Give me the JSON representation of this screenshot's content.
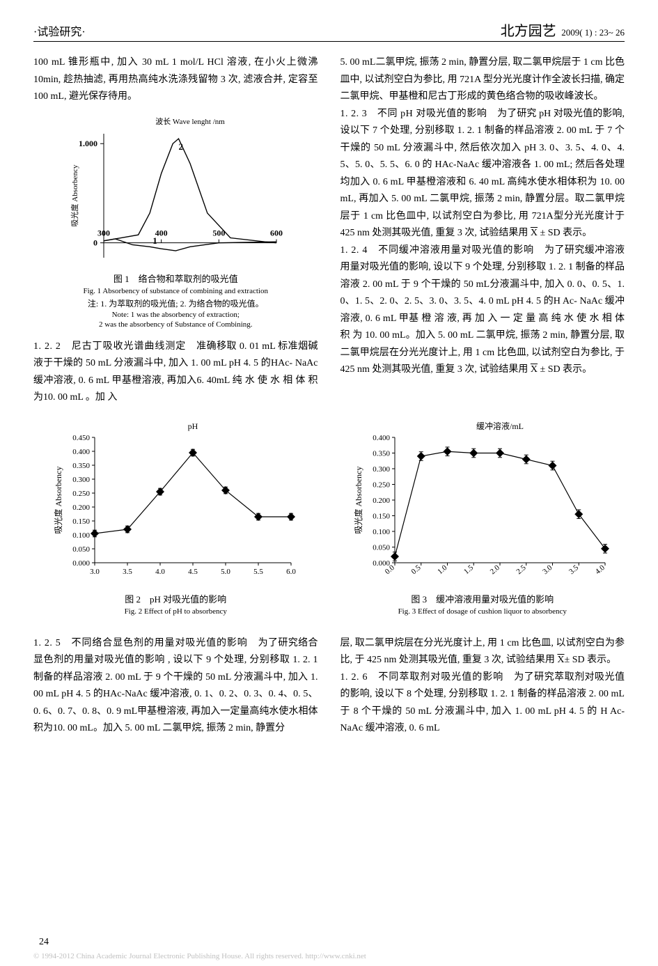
{
  "header": {
    "section": "·试验研究·",
    "journal": "北方园艺",
    "issue": "2009( 1) : 23~ 26"
  },
  "col_left": {
    "p1": "100 mL 锥形瓶中, 加入 30 mL 1 mol/L HCl 溶液, 在小火上微沸 10min, 趁热抽滤, 再用热高纯水洗涤残留物 3 次, 滤液合并, 定容至 100 mL, 避光保存待用。",
    "p2_head": "1. 2. 2　尼古丁吸收光谱曲线测定　",
    "p2_body": "准确移取 0. 01 mL 标准烟碱液于干燥的 50 mL 分液漏斗中, 加入 1. 00 mL pH 4. 5 的HAc- NaAc缓冲溶液, 0. 6 mL 甲基橙溶液, 再加入6. 40mL 纯 水 使 水 相 体 积 为10. 00 mL 。加 入"
  },
  "col_right": {
    "p1": "5. 00 mL二氯甲烷, 振荡 2 min, 静置分层, 取二氯甲烷层于 1 cm 比色皿中, 以试剂空白为参比, 用 721A 型分光光度计作全波长扫描, 确定二氯甲烷、甲基橙和尼古丁形成的黄色络合物的吸收峰波长。",
    "p2_head": "1. 2. 3　不同 pH 对吸光值的影响　",
    "p2_body": "为了研究 pH 对吸光值的影响, 设以下 7 个处理, 分别移取 1. 2. 1 制备的样品溶液 2. 00 mL 于 7 个干燥的 50 mL 分液漏斗中, 然后依次加入 pH 3. 0、3. 5、4. 0、4. 5、5. 0、5. 5、6. 0 的 HAc-NaAc 缓冲溶液各 1. 00 mL; 然后各处理均加入 0. 6 mL 甲基橙溶液和 6. 40 mL 高纯水使水相体积为 10. 00 mL, 再加入 5. 00 mL 二氯甲烷, 振荡 2 min, 静置分层。取二氯甲烷层于 1 cm 比色皿中, 以试剂空白为参比, 用 721A型分光光度计于 425 nm 处测其吸光值, 重复 3 次, 试验结果用 X ± SD 表示。",
    "p3_head": "1. 2. 4　不同缓冲溶液用量对吸光值的影响　",
    "p3_body": "为了研究缓冲溶液用量对吸光值的影响, 设以下 9 个处理, 分别移取 1. 2. 1 制备的样品溶液 2. 00 mL 于 9 个干燥的 50 mL分液漏斗中, 加入 0. 0、0. 5、1. 0、1. 5、2. 0、2. 5、3. 0、3. 5、4. 0 mL pH 4. 5 的H Ac- NaAc 缓冲溶液, 0. 6 mL 甲基 橙 溶 液, 再 加 入 一 定 量 高 纯 水 使 水 相 体 积 为 10. 00 mL。加入 5. 00 mL 二氯甲烷, 振荡 2 min, 静置分层, 取二氯甲烷层在分光光度计上, 用 1 cm 比色皿, 以试剂空白为参比, 于 425 nm 处测其吸光值, 重复 3 次, 试验结果用 X ± SD 表示。"
  },
  "fig1": {
    "cap_cn": "图 1　络合物和萃取剂的吸光值",
    "cap_en": "Fig. 1 Absorbency of substance of combining  and extraction",
    "note_cn": "注: 1. 为萃取剂的吸光值; 2. 为络合物的吸光值。",
    "note_en1": "Note: 1 was the absorbency of extraction;",
    "note_en2": "2 was the absorbency of Substance of Combining.",
    "xlabel": "波长 Wave lenght /nm",
    "ylabel": "吸光度 Absorbency",
    "x_ticks": [
      "300",
      "400",
      "500",
      "600"
    ],
    "y_ticks": [
      "0",
      "1.000"
    ],
    "series": [
      {
        "label": "1",
        "points": [
          [
            300,
            0.02
          ],
          [
            320,
            0.04
          ],
          [
            350,
            -0.02
          ],
          [
            380,
            -0.04
          ],
          [
            400,
            -0.06
          ],
          [
            425,
            -0.08
          ],
          [
            450,
            -0.04
          ],
          [
            500,
            0.0
          ],
          [
            600,
            0.01
          ]
        ]
      },
      {
        "label": "2",
        "points": [
          [
            300,
            0.02
          ],
          [
            330,
            0.05
          ],
          [
            360,
            0.08
          ],
          [
            380,
            0.3
          ],
          [
            400,
            0.7
          ],
          [
            420,
            1.0
          ],
          [
            430,
            1.05
          ],
          [
            450,
            0.8
          ],
          [
            480,
            0.3
          ],
          [
            520,
            0.05
          ],
          [
            580,
            0.01
          ],
          [
            600,
            0.0
          ]
        ]
      }
    ],
    "stroke": "#000000",
    "stroke_width": 1.4
  },
  "fig2": {
    "cap_cn": "图 2　pH 对吸光值的影响",
    "cap_en": "Fig. 2 Effect of pH to absorbency",
    "xlabel": "pH",
    "ylabel": "吸光度 Absorbency",
    "x_ticks": [
      "3.0",
      "3.5",
      "4.0",
      "4.5",
      "5.0",
      "5.5",
      "6.0"
    ],
    "y_ticks": [
      "0.000",
      "0.050",
      "0.100",
      "0.150",
      "0.200",
      "0.250",
      "0.300",
      "0.350",
      "0.400",
      "0.450"
    ],
    "points": [
      [
        3.0,
        0.105
      ],
      [
        3.5,
        0.12
      ],
      [
        4.0,
        0.255
      ],
      [
        4.5,
        0.395
      ],
      [
        5.0,
        0.26
      ],
      [
        5.5,
        0.165
      ],
      [
        6.0,
        0.165
      ]
    ],
    "err": 0.012,
    "stroke": "#000000",
    "marker": "diamond",
    "marker_size": 6,
    "stroke_width": 1.2
  },
  "fig3": {
    "cap_cn": "图 3　缓冲溶液用量对吸光值的影响",
    "cap_en": "Fig. 3 Effect of dosage of cushion liquor to absorbency",
    "xlabel": "缓冲溶液/mL",
    "ylabel": "吸光度 Absorbency",
    "x_ticks": [
      "0.0",
      "0.5",
      "1.0",
      "1.5",
      "2.0",
      "2.5",
      "3.0",
      "3.5",
      "4.0"
    ],
    "y_ticks": [
      "0.000",
      "0.050",
      "0.100",
      "0.150",
      "0.200",
      "0.250",
      "0.300",
      "0.350",
      "0.400"
    ],
    "points": [
      [
        0.0,
        0.02
      ],
      [
        0.5,
        0.34
      ],
      [
        1.0,
        0.355
      ],
      [
        1.5,
        0.35
      ],
      [
        2.0,
        0.35
      ],
      [
        2.5,
        0.33
      ],
      [
        3.0,
        0.31
      ],
      [
        3.5,
        0.155
      ],
      [
        4.0,
        0.045
      ]
    ],
    "err": 0.014,
    "stroke": "#000000",
    "marker": "diamond",
    "marker_size": 6,
    "stroke_width": 1.2
  },
  "lower_left": {
    "p1_head": "1. 2. 5　不同络合显色剂的用量对吸光值的影响　",
    "p1_body": "为了研究络合显色剂的用量对吸光值的影响 , 设以下 9 个处理, 分别移取 1. 2. 1 制备的样品溶液 2. 00 mL 于 9 个干燥的 50 mL 分液漏斗中, 加入 1. 00 mL pH 4. 5 的HAc-NaAc 缓冲溶液, 0. 1、0. 2、0. 3、0. 4、0. 5、0. 6、0. 7、0. 8、0. 9 mL甲基橙溶液, 再加入一定量高纯水使水相体积为10. 00 mL。加入 5. 00 mL 二氯甲烷, 振荡 2 min, 静置分"
  },
  "lower_right": {
    "p1": "层, 取二氯甲烷层在分光光度计上, 用 1 cm 比色皿, 以试剂空白为参比, 于 425 nm 处测其吸光值, 重复 3 次, 试验结果用 X± SD 表示。",
    "p2_head": "1. 2. 6　不同萃取剂对吸光值的影响　",
    "p2_body": "为了研究萃取剂对吸光值的影响, 设以下 8 个处理, 分别移取 1. 2. 1 制备的样品溶液 2. 00 mL 于 8 个干燥的 50 mL 分液漏斗中, 加入 1. 00 mL pH 4. 5 的 H Ac- NaAc 缓冲溶液, 0. 6 mL"
  },
  "page_num": "24",
  "footer": "© 1994-2012 China Academic Journal Electronic Publishing House. All rights reserved.    http://www.cnki.net"
}
